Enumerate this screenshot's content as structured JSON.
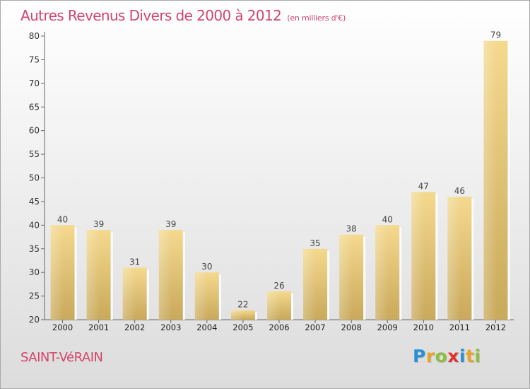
{
  "title": "Autres Revenus Divers de 2000 à 2012",
  "unit": "(en milliers d'€)",
  "commune": "SAINT-VéRAIN",
  "brand": {
    "letters": [
      "P",
      "r",
      "o",
      "x",
      "i",
      "t",
      "i"
    ],
    "colors": [
      "#2b8fd6",
      "#e6a52a",
      "#8cbf3f",
      "#e0312f",
      "#2b8fd6",
      "#e6a52a",
      "#8cbf3f"
    ]
  },
  "chart_data": {
    "type": "bar",
    "title": "Autres Revenus Divers de 2000 à 2012",
    "categories": [
      "2000",
      "2001",
      "2002",
      "2003",
      "2004",
      "2005",
      "2006",
      "2007",
      "2008",
      "2009",
      "2010",
      "2011",
      "2012"
    ],
    "values": [
      40,
      39,
      31,
      39,
      30,
      22,
      26,
      35,
      38,
      40,
      47,
      46,
      79
    ],
    "ylim": [
      20,
      80
    ],
    "yticks": [
      20,
      25,
      30,
      35,
      40,
      45,
      50,
      55,
      60,
      65,
      70,
      75,
      80
    ],
    "grid": false,
    "legend": "none",
    "bar_color": "#e8c97a"
  }
}
